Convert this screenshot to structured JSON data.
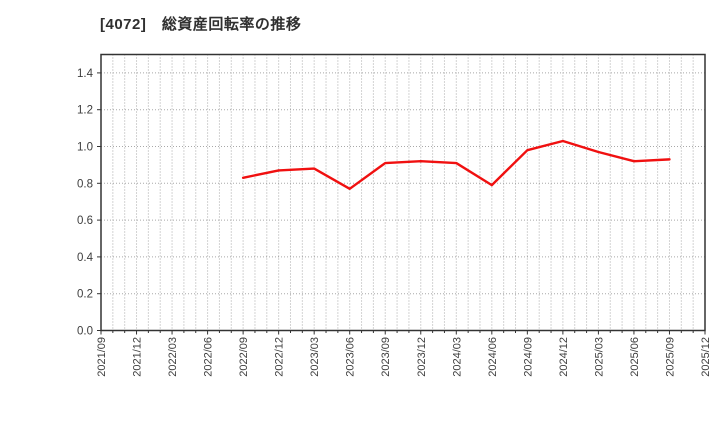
{
  "page": {
    "background": "#ffffff"
  },
  "chart_data": {
    "type": "line",
    "title": "[4072]　総資産回転率の推移",
    "categories": [
      "2021/09",
      "2021/12",
      "2022/03",
      "2022/06",
      "2022/09",
      "2022/12",
      "2023/03",
      "2023/06",
      "2023/09",
      "2023/12",
      "2024/03",
      "2024/06",
      "2024/09",
      "2024/12",
      "2025/03",
      "2025/06",
      "2025/09",
      "2025/12"
    ],
    "series": [
      {
        "name": "総資産回転率",
        "color": "#f01010",
        "values": [
          null,
          null,
          null,
          null,
          0.83,
          0.87,
          0.88,
          0.77,
          0.91,
          0.92,
          0.91,
          0.79,
          0.98,
          1.03,
          0.97,
          0.92,
          0.93,
          null
        ]
      }
    ],
    "ylim": [
      0,
      1.5
    ],
    "ytick_labels": [
      "0.0",
      "0.2",
      "0.4",
      "0.6",
      "0.8",
      "1.0",
      "1.2",
      "1.4"
    ],
    "x_minor_per_interval": 3,
    "grid": "dotted",
    "legend": "none",
    "colors": {
      "line": "#f01010",
      "grid": "#a8a8a8",
      "border": "#333333",
      "tick_label": "#3d3d3d",
      "title": "#303030"
    }
  }
}
